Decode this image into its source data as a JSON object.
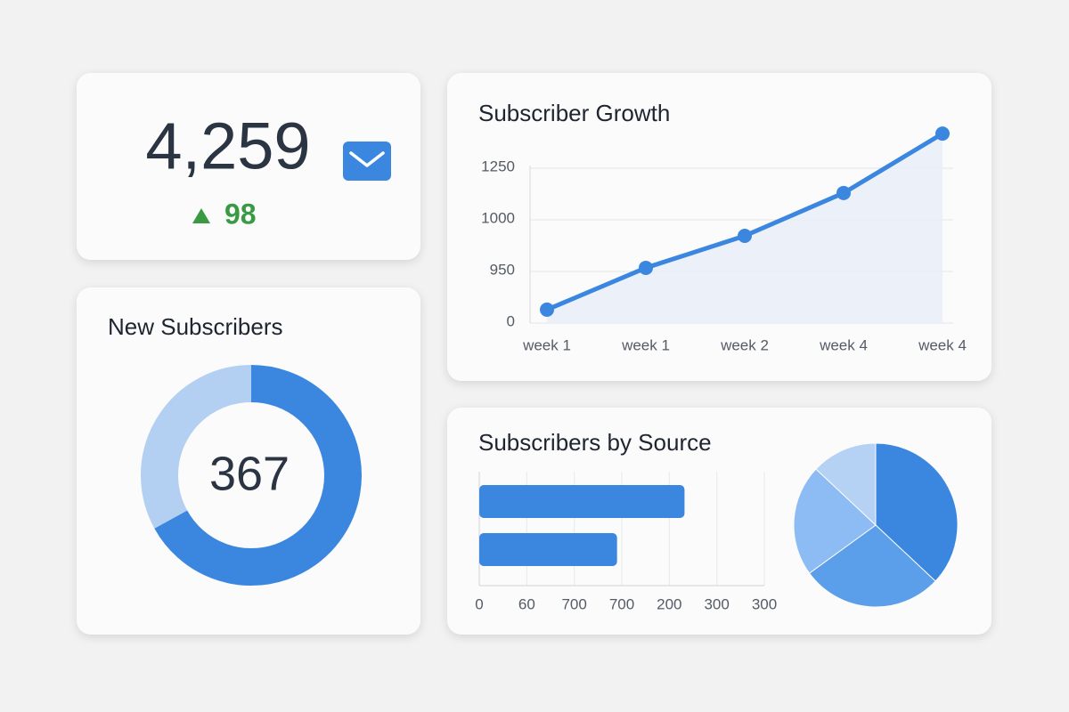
{
  "kpi": {
    "value": "4,259",
    "change": "98"
  },
  "new_subscribers": {
    "title": "New Subscribers",
    "total": "367",
    "chart": {
      "type": "donut",
      "values": [
        67,
        33
      ],
      "colors": [
        "#3b87e0",
        "#b3d0f2"
      ]
    }
  },
  "growth": {
    "title": "Subscriber Growth",
    "chart": {
      "type": "line",
      "categories": [
        "week 1",
        "week 1",
        "week 2",
        "week 4",
        "week 4"
      ],
      "values": [
        0.26,
        1.07,
        1.69,
        2.52,
        3.67
      ],
      "ylim": [
        0,
        3.7
      ],
      "yticks": [
        0,
        {
          "value": 1,
          "label": "950"
        },
        {
          "value": 2,
          "label": "1000"
        },
        {
          "value": 3,
          "label": "1250"
        }
      ],
      "color": "#3b87e0",
      "grid": true
    }
  },
  "source": {
    "title": "Subscribers by Source",
    "bar_chart": {
      "type": "bar",
      "orientation": "horizontal",
      "values": [
        4.32,
        2.9
      ],
      "xlim": [
        0,
        6
      ],
      "xticks": [
        0,
        {
          "value": 1,
          "label": "60"
        },
        {
          "value": 2,
          "label": "700"
        },
        {
          "value": 3,
          "label": "700"
        },
        {
          "value": 4,
          "label": "200"
        },
        {
          "value": 5,
          "label": "300"
        },
        {
          "value": 6,
          "label": "300"
        }
      ],
      "color": "#3b87e0",
      "grid": true
    },
    "pie_chart": {
      "type": "pie",
      "values": [
        37,
        28,
        22,
        13
      ],
      "colors": [
        "#3b87e0",
        "#5b9eea",
        "#8dbcf4",
        "#b5d2f5"
      ]
    }
  }
}
